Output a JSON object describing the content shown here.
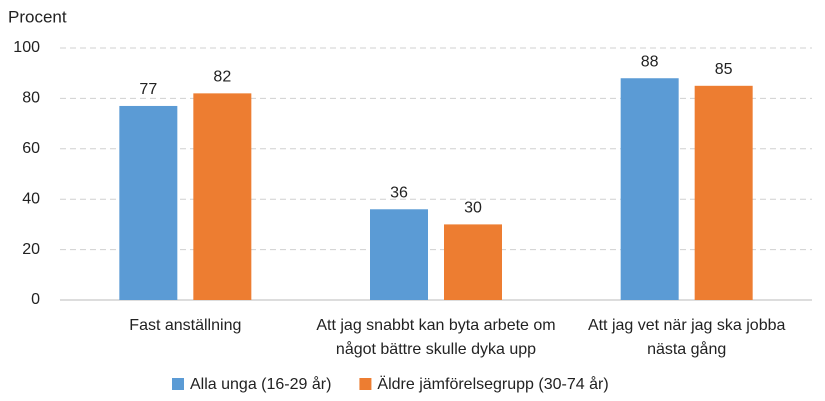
{
  "chart_data": {
    "type": "bar",
    "y_label": "Procent",
    "categories": [
      "Fast anställning",
      "Att jag snabbt kan byta arbete om något bättre skulle dyka upp",
      "Att jag vet när jag ska jobba nästa gång"
    ],
    "series": [
      {
        "name": "Alla unga (16-29 år)",
        "color": "#5b9bd5",
        "values": [
          77,
          36,
          88
        ]
      },
      {
        "name": "Äldre jämförelsegrupp (30-74 år)",
        "color": "#ed7d31",
        "values": [
          82,
          30,
          85
        ]
      }
    ],
    "ylim": [
      0,
      100
    ],
    "yticks": [
      0,
      20,
      40,
      60,
      80,
      100
    ],
    "grid": true,
    "legend": "bottom"
  }
}
